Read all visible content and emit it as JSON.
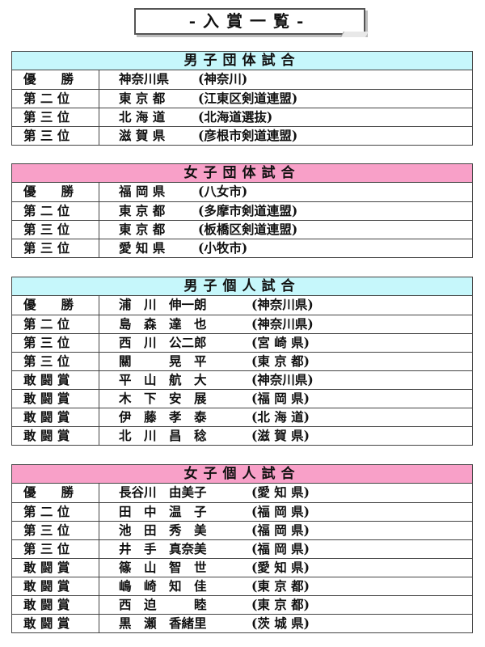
{
  "title": "-入賞一覧-",
  "sections": [
    {
      "heading": "男子団体試合",
      "rows": [
        {
          "rank": "優　　勝",
          "a": "神奈川県",
          "b": "(神奈川)"
        },
        {
          "rank": "第 二 位",
          "a": "東 京 都",
          "b": "(江東区剣道連盟)"
        },
        {
          "rank": "第 三 位",
          "a": "北 海 道",
          "b": "(北海道選抜)"
        },
        {
          "rank": "第 三 位",
          "a": "滋 賀 県",
          "b": "(彦根市剣道連盟)"
        }
      ]
    },
    {
      "heading": "女子団体試合",
      "rows": [
        {
          "rank": "優　　勝",
          "a": "福 岡 県",
          "b": "(八女市)"
        },
        {
          "rank": "第 二 位",
          "a": "東 京 都",
          "b": "(多摩市剣道連盟)"
        },
        {
          "rank": "第 三 位",
          "a": "東 京 都",
          "b": "(板橋区剣道連盟)"
        },
        {
          "rank": "第 三 位",
          "a": "愛 知 県",
          "b": "(小牧市)"
        }
      ]
    },
    {
      "heading": "男子個人試合",
      "rows": [
        {
          "rank": "優　　勝",
          "a": "浦　川　伸一朗",
          "b": "(神奈川県)"
        },
        {
          "rank": "第 二 位",
          "a": "島　森　達　也",
          "b": "(神奈川県)"
        },
        {
          "rank": "第 三 位",
          "a": "西　川　公二郎",
          "b": "(宮 崎 県)"
        },
        {
          "rank": "第 三 位",
          "a": "關　　　晃　平",
          "b": "(東 京 都)"
        },
        {
          "rank": "敢 闘 賞",
          "a": "平　山　航　大",
          "b": "(神奈川県)"
        },
        {
          "rank": "敢 闘 賞",
          "a": "木　下　安　展",
          "b": "(福 岡 県)"
        },
        {
          "rank": "敢 闘 賞",
          "a": "伊　藤　孝　泰",
          "b": "(北 海 道)"
        },
        {
          "rank": "敢 闘 賞",
          "a": "北　川　昌　稔",
          "b": "(滋 賀 県)"
        }
      ]
    },
    {
      "heading": "女子個人試合",
      "rows": [
        {
          "rank": "優　　勝",
          "a": "長谷川　由美子",
          "b": "(愛 知 県)"
        },
        {
          "rank": "第 二 位",
          "a": "田　中　温　子",
          "b": "(福 岡 県)"
        },
        {
          "rank": "第 三 位",
          "a": "池　田　秀　美",
          "b": "(福 岡 県)"
        },
        {
          "rank": "第 三 位",
          "a": "井　手　真奈美",
          "b": "(福 岡 県)"
        },
        {
          "rank": "敢 闘 賞",
          "a": "篠　山　智　世",
          "b": "(愛 知 県)"
        },
        {
          "rank": "敢 闘 賞",
          "a": "嶋　崎　知　佳",
          "b": "(東 京 都)"
        },
        {
          "rank": "敢 闘 賞",
          "a": "西　迫　　　睦",
          "b": "(東 京 都)"
        },
        {
          "rank": "敢 闘 賞",
          "a": "黒　瀬　香緒里",
          "b": "(茨 城 県)"
        }
      ]
    }
  ]
}
